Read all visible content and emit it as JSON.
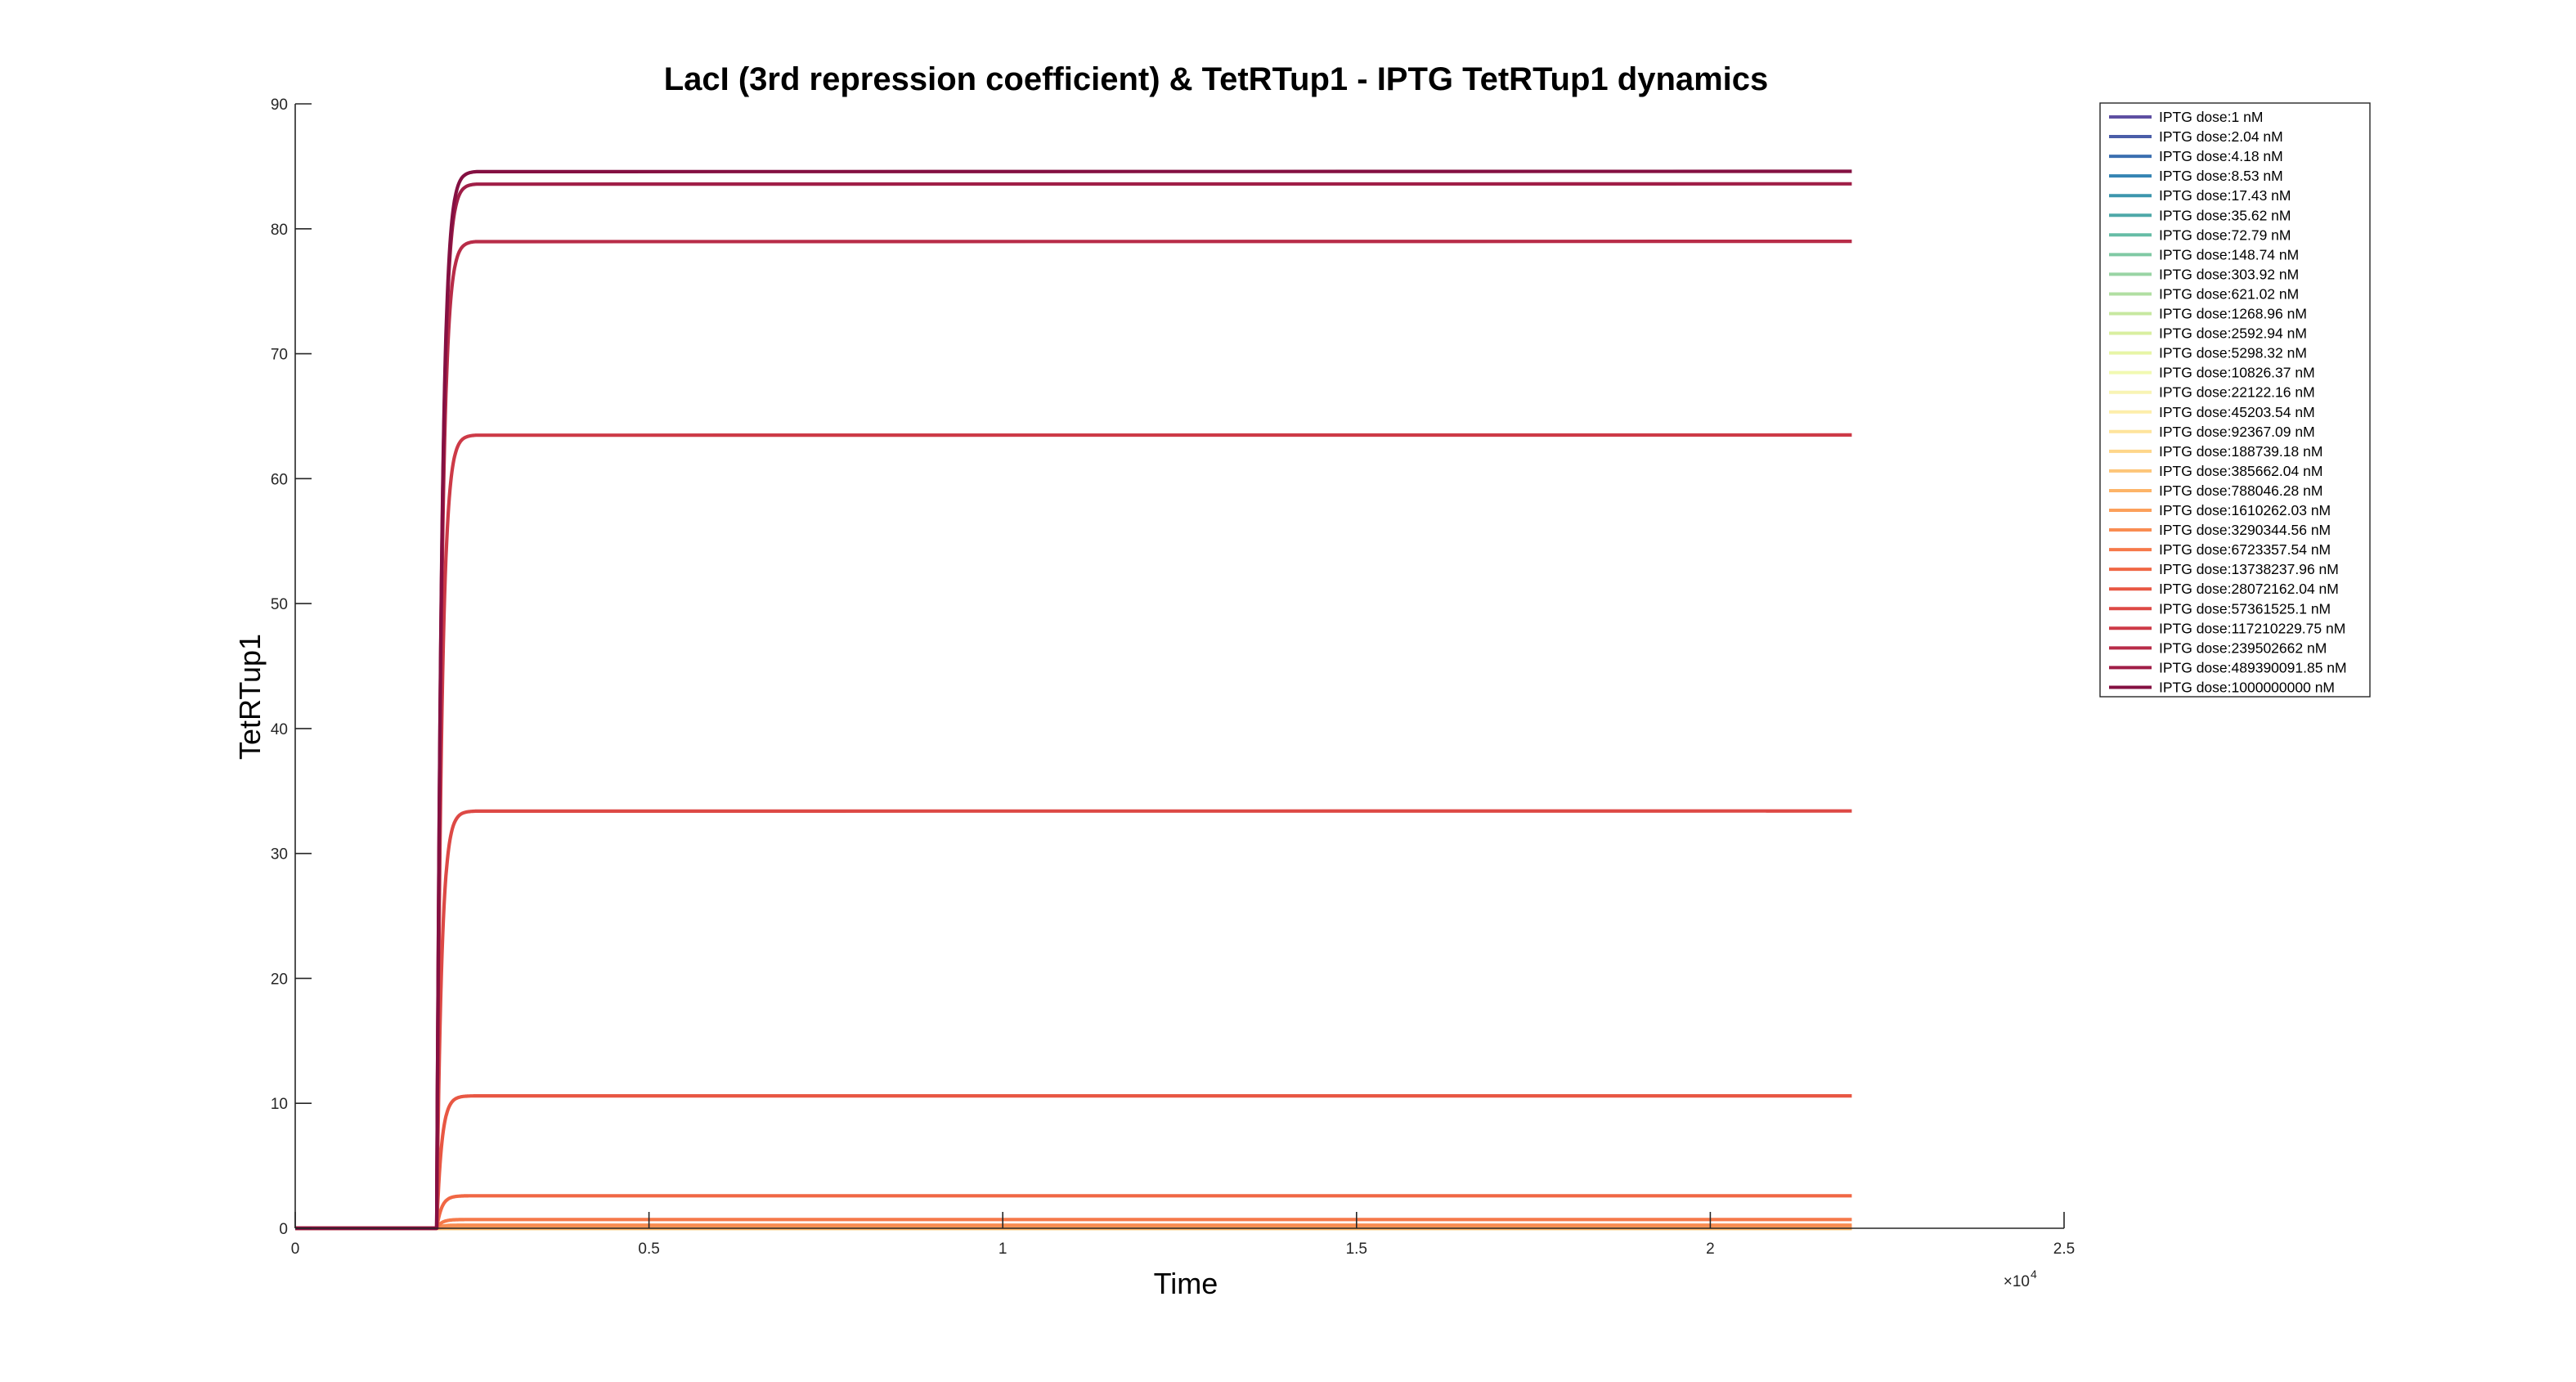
{
  "chart_data": {
    "type": "line",
    "title": "LacI (3rd repression coefficient) & TetRTup1 - IPTG TetRTup1 dynamics",
    "xlabel": "Time",
    "ylabel": "TetRTup1",
    "xlim": [
      0,
      25000
    ],
    "ylim": [
      0,
      90
    ],
    "x_exponent_label": "×10",
    "x_exponent_power": "4",
    "x_ticks": [
      {
        "value": 0,
        "label": "0"
      },
      {
        "value": 5000,
        "label": "0.5"
      },
      {
        "value": 10000,
        "label": "1"
      },
      {
        "value": 15000,
        "label": "1.5"
      },
      {
        "value": 20000,
        "label": "2"
      },
      {
        "value": 25000,
        "label": "2.5"
      }
    ],
    "y_ticks": [
      {
        "value": 0,
        "label": "0"
      },
      {
        "value": 10,
        "label": "10"
      },
      {
        "value": 20,
        "label": "20"
      },
      {
        "value": 30,
        "label": "30"
      },
      {
        "value": 40,
        "label": "40"
      },
      {
        "value": 50,
        "label": "50"
      },
      {
        "value": 60,
        "label": "60"
      },
      {
        "value": 70,
        "label": "70"
      },
      {
        "value": 80,
        "label": "80"
      },
      {
        "value": 90,
        "label": "90"
      }
    ],
    "grid": false,
    "legend_position": "top-right, outside plot area",
    "dose_step_time": 2000,
    "time_end": 22000,
    "rise_time_constant": 70,
    "series": [
      {
        "name": "IPTG dose:1 nM",
        "color": "#5e4fa2",
        "steady_state": 0
      },
      {
        "name": "IPTG dose:2.04 nM",
        "color": "#4b5ea8",
        "steady_state": 0
      },
      {
        "name": "IPTG dose:4.18 nM",
        "color": "#3b6fb0",
        "steady_state": 0
      },
      {
        "name": "IPTG dose:8.53 nM",
        "color": "#3584b3",
        "steady_state": 0
      },
      {
        "name": "IPTG dose:17.43 nM",
        "color": "#3d96ad",
        "steady_state": 0
      },
      {
        "name": "IPTG dose:35.62 nM",
        "color": "#4ea8a8",
        "steady_state": 0
      },
      {
        "name": "IPTG dose:72.79 nM",
        "color": "#66bda6",
        "steady_state": 0
      },
      {
        "name": "IPTG dose:148.74 nM",
        "color": "#80c9a4",
        "steady_state": 0
      },
      {
        "name": "IPTG dose:303.92 nM",
        "color": "#99d4a4",
        "steady_state": 0
      },
      {
        "name": "IPTG dose:621.02 nM",
        "color": "#b1dfa2",
        "steady_state": 0
      },
      {
        "name": "IPTG dose:1268.96 nM",
        "color": "#c7e8a0",
        "steady_state": 0
      },
      {
        "name": "IPTG dose:2592.94 nM",
        "color": "#d9efa0",
        "steady_state": 0
      },
      {
        "name": "IPTG dose:5298.32 nM",
        "color": "#e7f5a6",
        "steady_state": 0
      },
      {
        "name": "IPTG dose:10826.37 nM",
        "color": "#f1f9b2",
        "steady_state": 0
      },
      {
        "name": "IPTG dose:22122.16 nM",
        "color": "#f8f4b4",
        "steady_state": 0
      },
      {
        "name": "IPTG dose:45203.54 nM",
        "color": "#fdeeab",
        "steady_state": 0
      },
      {
        "name": "IPTG dose:92367.09 nM",
        "color": "#fee49c",
        "steady_state": 0
      },
      {
        "name": "IPTG dose:188739.18 nM",
        "color": "#fed68a",
        "steady_state": 0
      },
      {
        "name": "IPTG dose:385662.04 nM",
        "color": "#fdc679",
        "steady_state": 0
      },
      {
        "name": "IPTG dose:788046.28 nM",
        "color": "#fdb468",
        "steady_state": 0
      },
      {
        "name": "IPTG dose:1610262.03 nM",
        "color": "#fca05b",
        "steady_state": 0.1
      },
      {
        "name": "IPTG dose:3290344.56 nM",
        "color": "#f98c52",
        "steady_state": 0.25
      },
      {
        "name": "IPTG dose:6723357.54 nM",
        "color": "#f6794a",
        "steady_state": 0.7
      },
      {
        "name": "IPTG dose:13738237.96 nM",
        "color": "#f06744",
        "steady_state": 2.6
      },
      {
        "name": "IPTG dose:28072162.04 nM",
        "color": "#e85743",
        "steady_state": 10.6
      },
      {
        "name": "IPTG dose:57361525.1 nM",
        "color": "#dd4945",
        "steady_state": 33.4
      },
      {
        "name": "IPTG dose:117210229.75 nM",
        "color": "#cd3a47",
        "steady_state": 63.5
      },
      {
        "name": "IPTG dose:239502662 nM",
        "color": "#b82c48",
        "steady_state": 79.0
      },
      {
        "name": "IPTG dose:489390091.85 nM",
        "color": "#a01e47",
        "steady_state": 83.6
      },
      {
        "name": "IPTG dose:1000000000 nM",
        "color": "#841042",
        "steady_state": 84.6
      }
    ]
  }
}
